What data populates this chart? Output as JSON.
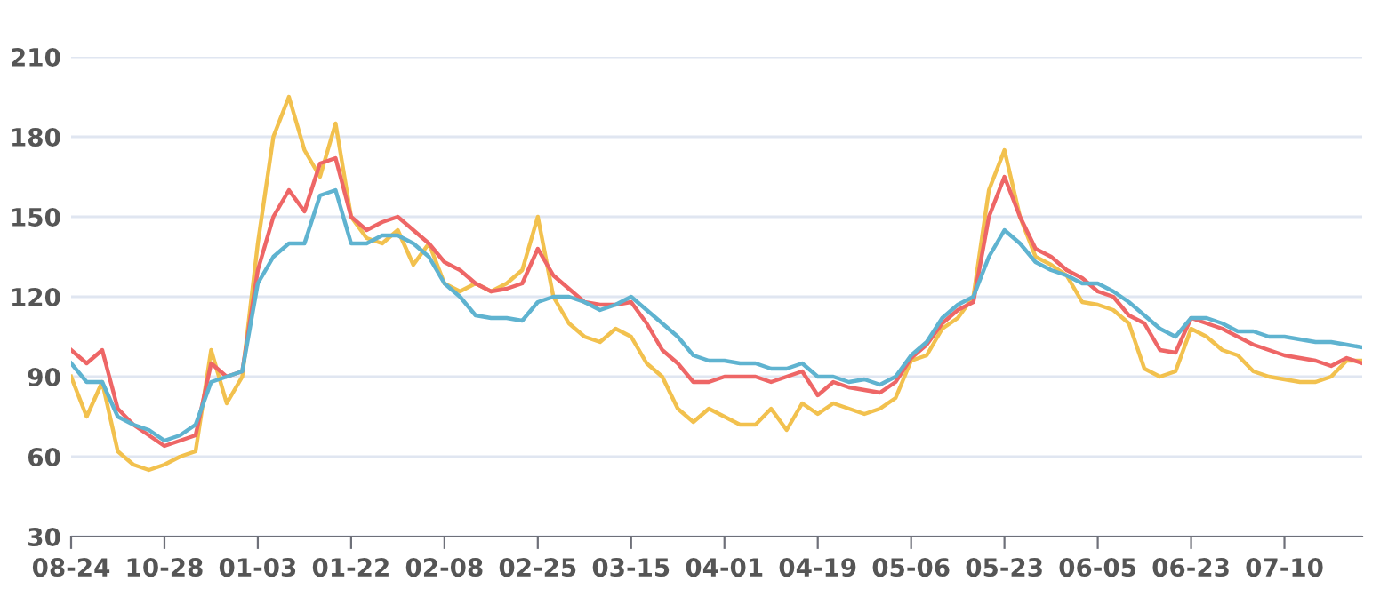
{
  "chart_data": {
    "type": "line",
    "categories": [
      "08-24",
      null,
      null,
      null,
      null,
      null,
      "10-28",
      null,
      null,
      null,
      null,
      null,
      "01-03",
      null,
      null,
      null,
      null,
      null,
      "01-22",
      null,
      null,
      null,
      null,
      null,
      "02-08",
      null,
      null,
      null,
      null,
      null,
      "02-25",
      null,
      null,
      null,
      null,
      null,
      "03-15",
      null,
      null,
      null,
      null,
      null,
      "04-01",
      null,
      null,
      null,
      null,
      null,
      "04-19",
      null,
      null,
      null,
      null,
      null,
      "05-06",
      null,
      null,
      null,
      null,
      null,
      "05-23",
      null,
      null,
      null,
      null,
      null,
      "06-05",
      null,
      null,
      null,
      null,
      null,
      "06-23",
      null,
      null,
      null,
      null,
      null,
      "07-10",
      null,
      null,
      null,
      null,
      null
    ],
    "series": [
      {
        "color": "#f2c14e",
        "values": [
          90,
          75,
          88,
          62,
          57,
          55,
          57,
          60,
          62,
          100,
          80,
          90,
          140,
          180,
          195,
          175,
          165,
          185,
          150,
          142,
          140,
          145,
          132,
          140,
          125,
          122,
          125,
          122,
          125,
          130,
          150,
          120,
          110,
          105,
          103,
          108,
          105,
          95,
          90,
          78,
          73,
          78,
          75,
          72,
          72,
          78,
          70,
          80,
          76,
          80,
          78,
          76,
          78,
          82,
          96,
          98,
          108,
          112,
          120,
          160,
          175,
          150,
          135,
          132,
          128,
          118,
          117,
          115,
          110,
          93,
          90,
          92,
          108,
          105,
          100,
          98,
          92,
          90,
          89,
          88,
          88,
          90,
          96,
          96
        ]
      },
      {
        "color": "#ee6666",
        "values": [
          100,
          95,
          100,
          78,
          72,
          68,
          64,
          66,
          68,
          95,
          90,
          92,
          130,
          150,
          160,
          152,
          170,
          172,
          150,
          145,
          148,
          150,
          145,
          140,
          133,
          130,
          125,
          122,
          123,
          125,
          138,
          128,
          123,
          118,
          117,
          117,
          118,
          110,
          100,
          95,
          88,
          88,
          90,
          90,
          90,
          88,
          90,
          92,
          83,
          88,
          86,
          85,
          84,
          88,
          97,
          102,
          110,
          115,
          118,
          150,
          165,
          150,
          138,
          135,
          130,
          127,
          122,
          120,
          113,
          110,
          100,
          99,
          112,
          110,
          108,
          105,
          102,
          100,
          98,
          97,
          96,
          94,
          97,
          95
        ]
      },
      {
        "color": "#5fb3d0",
        "values": [
          95,
          88,
          88,
          75,
          72,
          70,
          66,
          68,
          72,
          88,
          90,
          92,
          125,
          135,
          140,
          140,
          158,
          160,
          140,
          140,
          143,
          143,
          140,
          135,
          125,
          120,
          113,
          112,
          112,
          111,
          118,
          120,
          120,
          118,
          115,
          117,
          120,
          115,
          110,
          105,
          98,
          96,
          96,
          95,
          95,
          93,
          93,
          95,
          90,
          90,
          88,
          89,
          87,
          90,
          98,
          103,
          112,
          117,
          120,
          135,
          145,
          140,
          133,
          130,
          128,
          125,
          125,
          122,
          118,
          113,
          108,
          105,
          112,
          112,
          110,
          107,
          107,
          105,
          105,
          104,
          103,
          103,
          102,
          101
        ]
      }
    ],
    "ylim": [
      30,
      210
    ],
    "yticks": [
      30,
      60,
      90,
      120,
      150,
      180,
      210
    ],
    "grid": "y",
    "marker": "none",
    "line_style": "solid"
  }
}
